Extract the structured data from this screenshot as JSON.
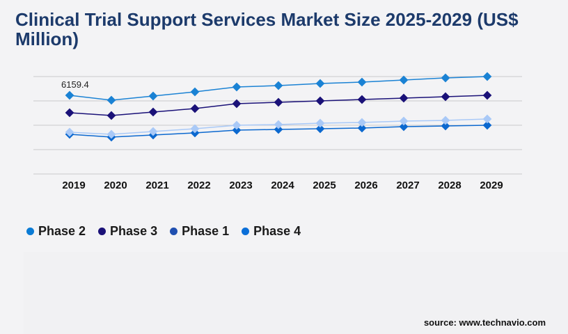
{
  "title": "Clinical Trial Support Services Market Size 2025-2029 (US$ Million)",
  "source": "source: www.technavio.com",
  "chart_data": {
    "type": "line",
    "title": "Clinical Trial Support Services Market Size 2025-2029 (US$ Million)",
    "xlabel": "",
    "ylabel": "",
    "categories": [
      "2019",
      "2020",
      "2021",
      "2022",
      "2023",
      "2024",
      "2025",
      "2026",
      "2027",
      "2028",
      "2029"
    ],
    "ylim": [
      0,
      7630
    ],
    "grid": true,
    "legend_position": "bottom-left",
    "annotations": [
      {
        "series": "Phase 2",
        "category": "2019",
        "text": "6159.4"
      }
    ],
    "series": [
      {
        "name": "Phase 2",
        "color": "#1a82d4",
        "legend_color": "#0a7bd5",
        "values": [
          6159.4,
          5778,
          6105,
          6432,
          6814,
          6923,
          7087,
          7196,
          7360,
          7523,
          7632
        ]
      },
      {
        "name": "Phase 3",
        "color": "#1a1178",
        "legend_color": "#1a1178",
        "values": [
          4796,
          4578,
          4851,
          5123,
          5505,
          5614,
          5723,
          5832,
          5941,
          6050,
          6159
        ]
      },
      {
        "name": "Phase 1",
        "color": "#a9c9f7",
        "legend_color": "#1f4fb0",
        "values": [
          3270,
          3107,
          3325,
          3542,
          3815,
          3869,
          3978,
          4033,
          4142,
          4196,
          4306
        ]
      },
      {
        "name": "Phase 4",
        "color": "#0b68cf",
        "legend_color": "#0b6fd8",
        "values": [
          3107,
          2889,
          3052,
          3215,
          3433,
          3488,
          3542,
          3597,
          3706,
          3760,
          3815
        ]
      }
    ]
  }
}
